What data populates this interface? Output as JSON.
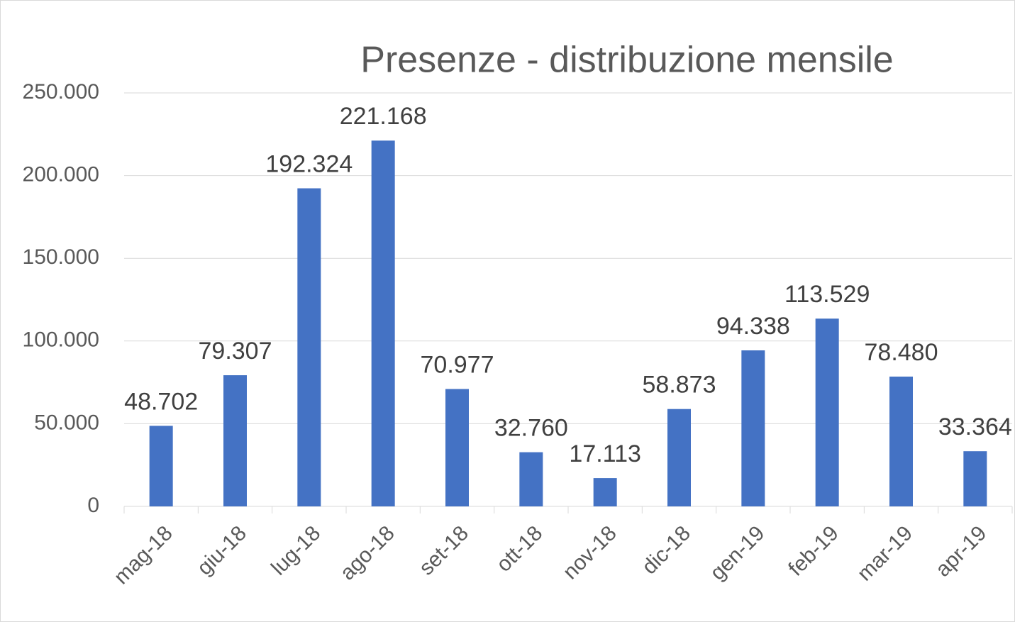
{
  "chart_data": {
    "type": "bar",
    "title": "Presenze - distribuzione mensile",
    "categories": [
      "mag-18",
      "giu-18",
      "lug-18",
      "ago-18",
      "set-18",
      "ott-18",
      "nov-18",
      "dic-18",
      "gen-19",
      "feb-19",
      "mar-19",
      "apr-19"
    ],
    "values": [
      48702,
      79307,
      192324,
      221168,
      70977,
      32760,
      17113,
      58873,
      94338,
      113529,
      78480,
      33364
    ],
    "value_labels": [
      "48.702",
      "79.307",
      "192.324",
      "221.168",
      "70.977",
      "32.760",
      "17.113",
      "58.873",
      "94.338",
      "113.529",
      "78.480",
      "33.364"
    ],
    "color": "#4472c4",
    "ylim": [
      0,
      250000
    ],
    "yticks": [
      0,
      {
        "value": 50000,
        "label": "50.000"
      },
      {
        "value": 100000,
        "label": "100.000"
      },
      {
        "value": 150000,
        "label": "150.000"
      },
      {
        "value": 200000,
        "label": "200.000"
      },
      {
        "value": 250000,
        "label": "250.000"
      }
    ],
    "grid": true
  }
}
